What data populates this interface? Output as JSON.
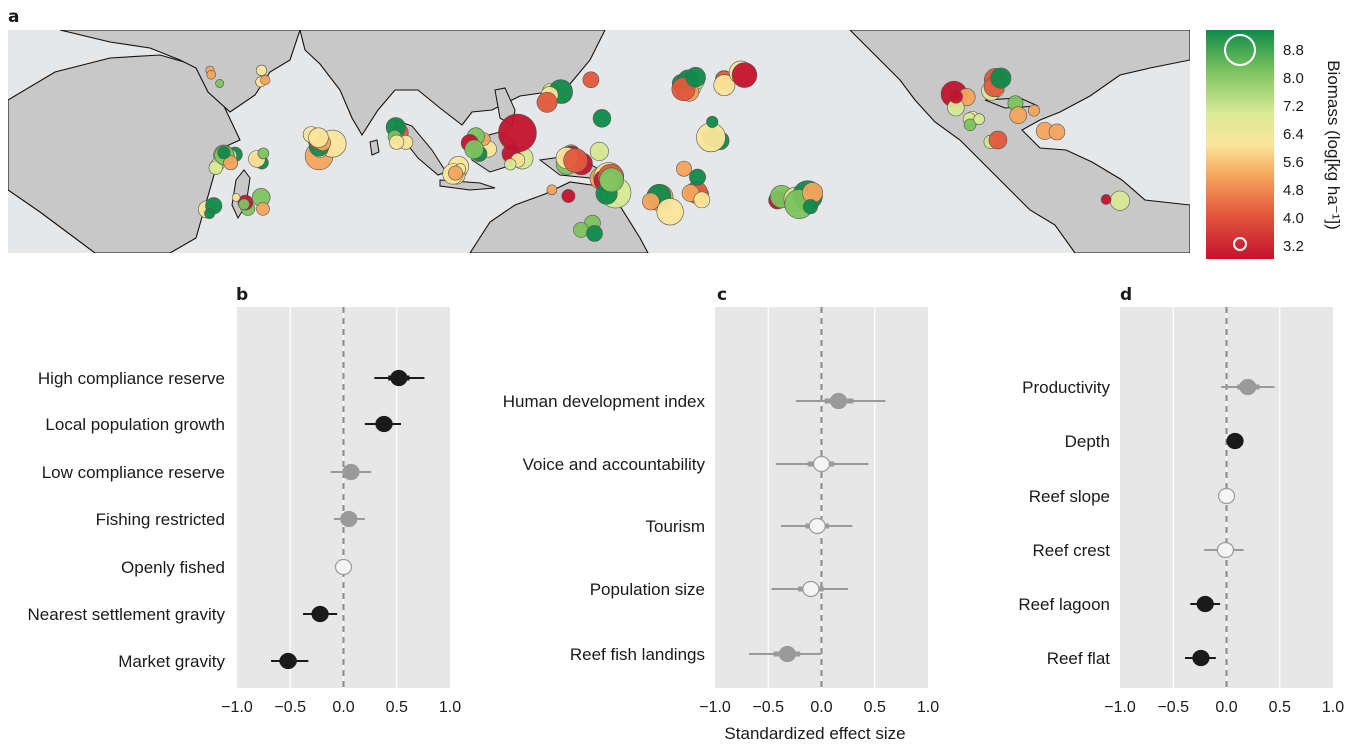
{
  "figure": {
    "panel_letters": {
      "a": "a",
      "b": "b",
      "c": "c",
      "d": "d"
    },
    "shared_xlabel": "Standardized effect size",
    "colorbar": {
      "title": "Biomass (log[kg ha⁻¹])",
      "ticks": [
        "8.8",
        "8.0",
        "7.2",
        "6.4",
        "5.6",
        "4.8",
        "4.0",
        "3.2"
      ],
      "colors": [
        "#0f8a4a",
        "#7cc45e",
        "#d7ea95",
        "#fbe69a",
        "#f4a45c",
        "#e25a3c",
        "#c4122f"
      ]
    }
  },
  "chart_data": [
    {
      "type": "map",
      "panel": "a",
      "legend_placement": "right",
      "colors": {
        "ocean": "#e6e7e8",
        "land": "#c8c8c8",
        "coastline": "#111111"
      }
    },
    {
      "type": "scatter",
      "panel": "b",
      "xlim": [
        -1.0,
        1.0
      ],
      "xticks": [
        "−1.0",
        "−0.5",
        "0.0",
        "0.5",
        "1.0"
      ],
      "grid": true,
      "reference_line": 0,
      "categories": [
        "High compliance reserve",
        "Local population growth",
        "Low compliance reserve",
        "Fishing restricted",
        "Openly fished",
        "Nearest settlement gravity",
        "Market gravity"
      ],
      "estimates": [
        0.52,
        0.38,
        0.07,
        0.05,
        0.0,
        -0.22,
        -0.52
      ],
      "ci_low": [
        0.29,
        0.2,
        -0.12,
        -0.09,
        0.0,
        -0.38,
        -0.68
      ],
      "ci_high": [
        0.76,
        0.54,
        0.26,
        0.2,
        0.0,
        -0.06,
        -0.33
      ],
      "ci_inner_low": [
        0.42,
        0.31,
        -0.01,
        -0.01,
        0.0,
        -0.29,
        -0.6
      ],
      "ci_inner_high": [
        0.62,
        0.46,
        0.14,
        0.11,
        0.0,
        -0.15,
        -0.44
      ],
      "status": [
        "sig",
        "sig",
        "ns",
        "ns",
        "ref",
        "sig",
        "sig"
      ]
    },
    {
      "type": "scatter",
      "panel": "c",
      "xlim": [
        -1.0,
        1.0
      ],
      "xticks": [
        "−1.0",
        "−0.5",
        "0.0",
        "0.5",
        "1.0"
      ],
      "grid": true,
      "reference_line": 0,
      "categories": [
        "Human development index",
        "Voice and accountability",
        "Tourism",
        "Population size",
        "Reef fish landings"
      ],
      "estimates": [
        0.16,
        0.0,
        -0.04,
        -0.1,
        -0.32
      ],
      "ci_low": [
        -0.24,
        -0.43,
        -0.38,
        -0.47,
        -0.68
      ],
      "ci_high": [
        0.6,
        0.44,
        0.29,
        0.25,
        0.0
      ],
      "ci_inner_low": [
        0.03,
        -0.13,
        -0.15,
        -0.22,
        -0.45
      ],
      "ci_inner_high": [
        0.3,
        0.12,
        0.07,
        0.02,
        -0.2
      ],
      "status": [
        "ns",
        "ns_hollow",
        "ns_hollow",
        "ns_hollow",
        "ns"
      ]
    },
    {
      "type": "scatter",
      "panel": "d",
      "xlim": [
        -1.0,
        1.0
      ],
      "xticks": [
        "−1.0",
        "−0.5",
        "0.0",
        "0.5",
        "1.0"
      ],
      "grid": true,
      "reference_line": 0,
      "categories": [
        "Productivity",
        "Depth",
        "Reef slope",
        "Reef crest",
        "Reef lagoon",
        "Reef flat"
      ],
      "estimates": [
        0.2,
        0.08,
        0.0,
        -0.01,
        -0.2,
        -0.24
      ],
      "ci_low": [
        -0.05,
        0.03,
        0.0,
        -0.21,
        -0.34,
        -0.39
      ],
      "ci_high": [
        0.45,
        0.13,
        0.0,
        0.16,
        -0.06,
        -0.1
      ],
      "ci_inner_low": [
        0.1,
        0.05,
        0.0,
        -0.09,
        -0.26,
        -0.31
      ],
      "ci_inner_high": [
        0.31,
        0.11,
        0.0,
        0.07,
        -0.13,
        -0.17
      ],
      "status": [
        "ns",
        "sig",
        "ref",
        "ns_hollow",
        "sig",
        "sig"
      ]
    }
  ]
}
